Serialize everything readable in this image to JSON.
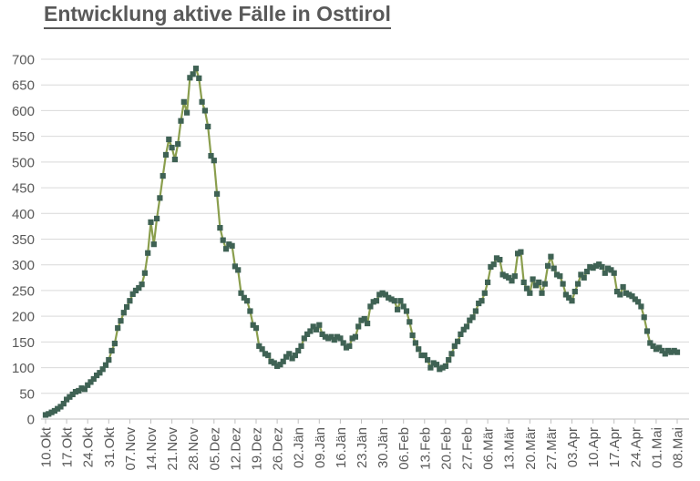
{
  "chart_data": {
    "type": "line",
    "title": "Entwicklung aktive Fälle in Osttirol",
    "xlabel": "",
    "ylabel": "",
    "ylim": [
      0,
      700
    ],
    "y_ticks": [
      0,
      50,
      100,
      150,
      200,
      250,
      300,
      350,
      400,
      450,
      500,
      550,
      600,
      650,
      700
    ],
    "grid": "horizontal",
    "legend_position": "none",
    "x_tick_labels": [
      "10.Okt",
      "17.Okt",
      "24.Okt",
      "31.Okt",
      "07.Nov",
      "14.Nov",
      "21.Nov",
      "28.Nov",
      "05.Dez",
      "12.Dez",
      "19.Dez",
      "26.Dez",
      "02.Jän",
      "09.Jän",
      "16.Jän",
      "23.Jän",
      "30.Jän",
      "06.Feb",
      "13.Feb",
      "20.Feb",
      "27.Feb",
      "06.Mär",
      "13.Mär",
      "20.Mär",
      "27.Mär",
      "03.Apr",
      "10.Apr",
      "17.Apr",
      "24.Apr",
      "01.Mai",
      "08.Mai"
    ],
    "days_per_tick": 7,
    "series": [
      {
        "name": "aktive Fälle",
        "start_label": "10.Okt",
        "end_label": "08.Mai",
        "values": [
          8,
          10,
          13,
          16,
          20,
          24,
          30,
          38,
          43,
          48,
          53,
          55,
          60,
          58,
          66,
          72,
          78,
          85,
          90,
          97,
          105,
          115,
          133,
          147,
          177,
          191,
          207,
          218,
          230,
          243,
          250,
          255,
          262,
          284,
          323,
          383,
          340,
          390,
          430,
          473,
          514,
          544,
          528,
          505,
          535,
          580,
          617,
          596,
          664,
          671,
          682,
          663,
          617,
          600,
          569,
          512,
          503,
          438,
          372,
          348,
          331,
          340,
          337,
          297,
          290,
          245,
          236,
          230,
          210,
          183,
          177,
          142,
          136,
          127,
          124,
          112,
          109,
          103,
          106,
          112,
          121,
          127,
          118,
          124,
          133,
          142,
          157,
          165,
          171,
          180,
          174,
          183,
          165,
          160,
          157,
          160,
          154,
          160,
          157,
          148,
          139,
          142,
          157,
          160,
          180,
          192,
          195,
          186,
          219,
          228,
          230,
          242,
          245,
          242,
          236,
          233,
          230,
          213,
          230,
          219,
          210,
          189,
          163,
          148,
          136,
          124,
          124,
          115,
          100,
          109,
          106,
          97,
          100,
          103,
          115,
          127,
          142,
          151,
          165,
          174,
          180,
          192,
          198,
          210,
          225,
          230,
          245,
          266,
          296,
          301,
          313,
          310,
          281,
          278,
          275,
          269,
          278,
          322,
          325,
          266,
          254,
          245,
          272,
          260,
          266,
          245,
          263,
          298,
          316,
          293,
          281,
          278,
          263,
          242,
          236,
          230,
          248,
          263,
          281,
          275,
          287,
          296,
          294,
          298,
          301,
          296,
          284,
          293,
          290,
          284,
          248,
          242,
          257,
          245,
          242,
          239,
          233,
          228,
          219,
          198,
          171,
          148,
          142,
          136,
          139,
          133,
          127,
          133,
          130,
          133,
          130
        ]
      }
    ]
  },
  "colors": {
    "line": "#8A9E4D",
    "marker": "#3F6254",
    "gridline": "#D9D9D9",
    "axis_line": "#BFBFBF",
    "tick": "#BFBFBF",
    "label_text": "#595959",
    "title_text": "#595959",
    "background": "#FFFFFF"
  }
}
